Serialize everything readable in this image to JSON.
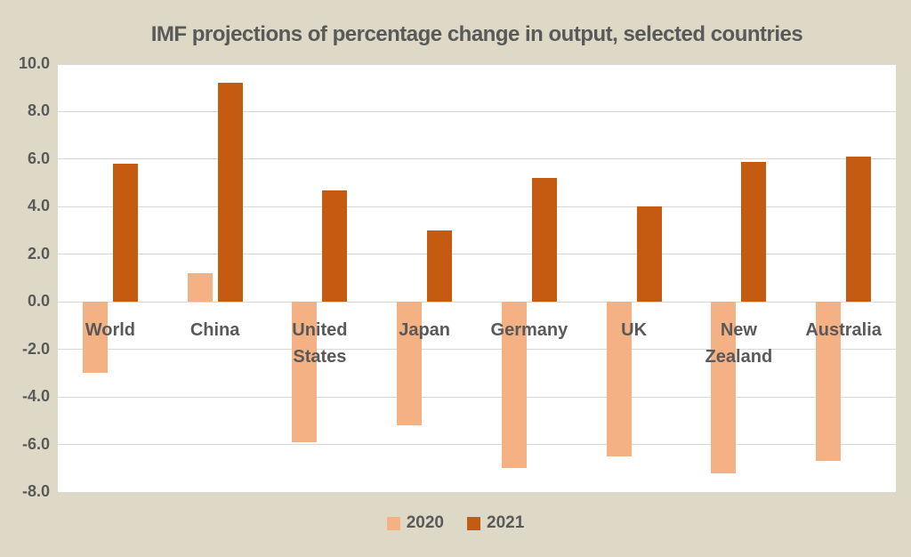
{
  "colors": {
    "background": "#ded9c6",
    "plot_background": "#ffffff",
    "gridline": "#d8d8d8",
    "text": "#595959",
    "series_2020": "#f4b183",
    "series_2021": "#c55a11"
  },
  "chart_data": {
    "type": "bar",
    "title": "IMF projections of percentage change in output, selected countries",
    "categories": [
      "World",
      "China",
      "United States",
      "Japan",
      "Germany",
      "UK",
      "New Zealand",
      "Australia"
    ],
    "series": [
      {
        "name": "2020",
        "color": "#f4b183",
        "values": [
          -3.0,
          1.2,
          -5.9,
          -5.2,
          -7.0,
          -6.5,
          -7.2,
          -6.7
        ]
      },
      {
        "name": "2021",
        "color": "#c55a11",
        "values": [
          5.8,
          9.2,
          4.7,
          3.0,
          5.2,
          4.0,
          5.9,
          6.1
        ]
      }
    ],
    "xlabel": "",
    "ylabel": "",
    "y_axis": {
      "min": -8,
      "max": 10,
      "step": 2,
      "ticks": [
        "10.0",
        "8.0",
        "6.0",
        "4.0",
        "2.0",
        "0.0",
        "-2.0",
        "-4.0",
        "-6.0",
        "-8.0"
      ]
    },
    "grid": true,
    "legend_position": "bottom",
    "category_label_position": "below-zero-axis"
  }
}
